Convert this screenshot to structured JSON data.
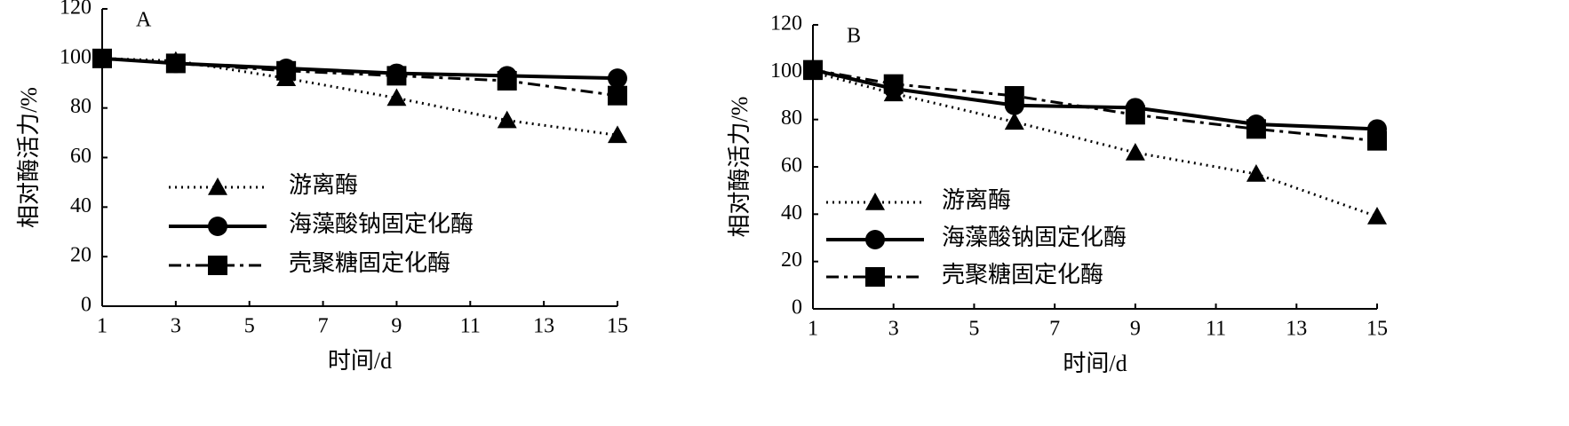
{
  "chart_data": [
    {
      "type": "line",
      "title": "A",
      "x_label": "时间/d",
      "y_label": "相对酶活力/%",
      "x": [
        1,
        3,
        6,
        9,
        12,
        15
      ],
      "xlim": [
        1,
        15
      ],
      "xticks": [
        1,
        3,
        5,
        7,
        9,
        11,
        13,
        15
      ],
      "ylim": [
        0,
        120
      ],
      "yticks": [
        0,
        20,
        40,
        60,
        80,
        100,
        120
      ],
      "legend": "lower left",
      "series": [
        {
          "name": "游离酶",
          "color": "#000000",
          "marker": "triangle",
          "line_style": "dotted",
          "values": [
            100,
            99,
            92,
            84,
            75,
            69
          ]
        },
        {
          "name": "海藻酸钠固定化酶",
          "color": "#000000",
          "marker": "circle",
          "line_style": "solid",
          "values": [
            100,
            98,
            96,
            94,
            93,
            92
          ]
        },
        {
          "name": "壳聚糖固定化酶",
          "color": "#000000",
          "marker": "square",
          "line_style": "dashdot",
          "values": [
            100,
            98,
            95,
            93,
            91,
            85
          ]
        }
      ]
    },
    {
      "type": "line",
      "title": "B",
      "x_label": "时间/d",
      "y_label": "相对酶活力/%",
      "x": [
        1,
        3,
        6,
        9,
        12,
        15
      ],
      "xlim": [
        1,
        15
      ],
      "xticks": [
        1,
        3,
        5,
        7,
        9,
        11,
        13,
        15
      ],
      "ylim": [
        0,
        120
      ],
      "yticks": [
        0,
        20,
        40,
        60,
        80,
        100,
        120
      ],
      "legend": "lower left",
      "series": [
        {
          "name": "游离酶",
          "color": "#000000",
          "marker": "triangle",
          "line_style": "dotted",
          "values": [
            100,
            91,
            79,
            66,
            57,
            39
          ]
        },
        {
          "name": "海藻酸钠固定化酶",
          "color": "#000000",
          "marker": "circle",
          "line_style": "solid",
          "values": [
            101,
            93,
            86,
            85,
            78,
            76
          ]
        },
        {
          "name": "壳聚糖固定化酶",
          "color": "#000000",
          "marker": "square",
          "line_style": "dashdot",
          "values": [
            101,
            95,
            90,
            82,
            76,
            71
          ]
        }
      ]
    }
  ]
}
